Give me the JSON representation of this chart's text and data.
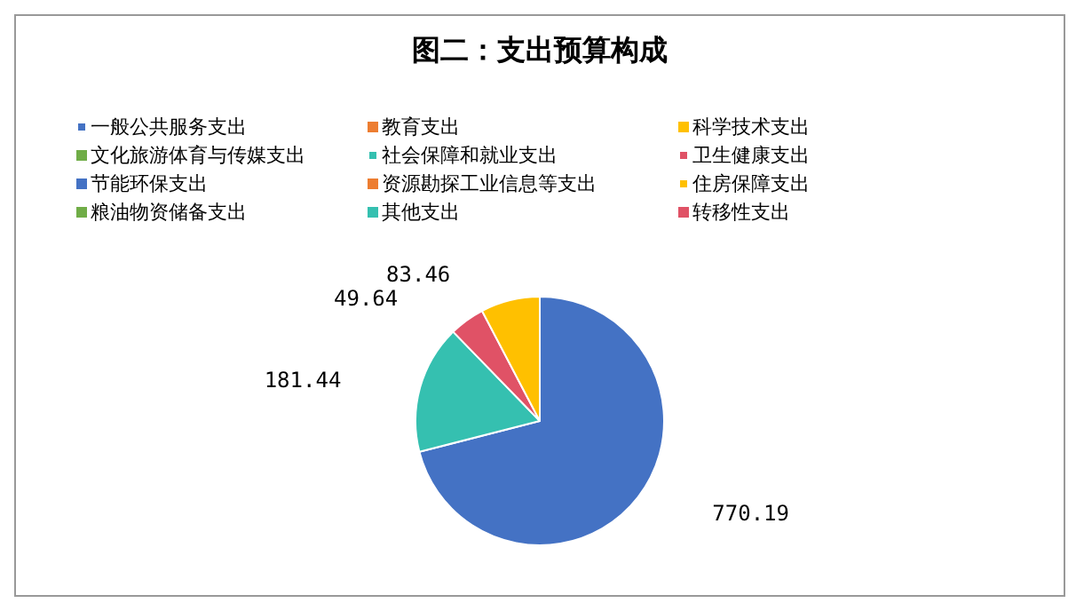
{
  "chart_data": {
    "type": "pie",
    "title": "图二：支出预算构成",
    "categories": [
      "一般公共服务支出",
      "教育支出",
      "科学技术支出",
      "文化旅游体育与传媒支出",
      "社会保障和就业支出",
      "卫生健康支出",
      "节能环保支出",
      "资源勘探工业信息等支出",
      "住房保障支出",
      "粮油物资储备支出",
      "其他支出",
      "转移性支出"
    ],
    "values": [
      770.19,
      0,
      0,
      0,
      181.44,
      49.64,
      0,
      0,
      83.46,
      0,
      0,
      0
    ],
    "value_labels": [
      "770.19",
      null,
      null,
      null,
      "181.44",
      "49.64",
      null,
      null,
      "83.46",
      null,
      null,
      null
    ],
    "colors": [
      "#4472c4",
      "#ed7d31",
      "#ffc000",
      "#70ad47",
      "#35c0b0",
      "#e05266",
      "#4472c4",
      "#ed7d31",
      "#ffc000",
      "#70ad47",
      "#35c0b0",
      "#e05266"
    ],
    "legend": "top"
  }
}
